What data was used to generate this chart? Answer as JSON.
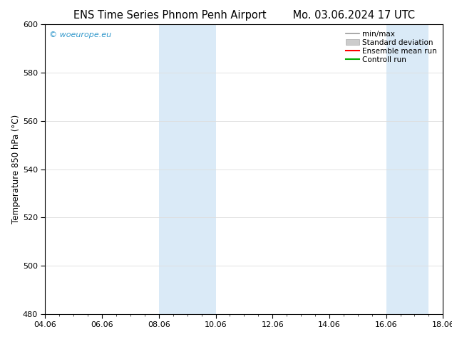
{
  "title_left": "ENS Time Series Phnom Penh Airport",
  "title_right": "Mo. 03.06.2024 17 UTC",
  "ylabel": "Temperature 850 hPa (°C)",
  "ylim": [
    480,
    600
  ],
  "yticks": [
    480,
    500,
    520,
    540,
    560,
    580,
    600
  ],
  "xtick_labels": [
    "04.06",
    "06.06",
    "08.06",
    "10.06",
    "12.06",
    "14.06",
    "16.06",
    "18.06"
  ],
  "xtick_positions": [
    0,
    2,
    4,
    6,
    8,
    10,
    12,
    14
  ],
  "shaded_bands": [
    {
      "x_start": 4,
      "x_end": 6
    },
    {
      "x_start": 12,
      "x_end": 13.5
    }
  ],
  "shaded_color": "#daeaf7",
  "watermark_text": "© woeurope.eu",
  "watermark_color": "#3399cc",
  "background_color": "#ffffff",
  "legend_items": [
    {
      "label": "min/max",
      "color": "#999999",
      "lw": 1.2
    },
    {
      "label": "Standard deviation",
      "color": "#cccccc",
      "lw": 5
    },
    {
      "label": "Ensemble mean run",
      "color": "#ff0000",
      "lw": 1.5
    },
    {
      "label": "Controll run",
      "color": "#00aa00",
      "lw": 1.5
    }
  ],
  "grid_color": "#dddddd",
  "spine_color": "#000000",
  "title_fontsize": 10.5,
  "axis_fontsize": 8.5,
  "tick_fontsize": 8,
  "legend_fontsize": 7.5
}
